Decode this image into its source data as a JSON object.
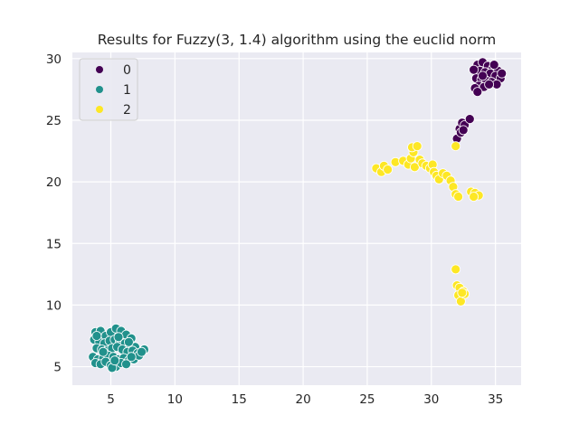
{
  "chart_data": {
    "type": "scatter",
    "title": "Results for Fuzzy(3, 1.4) algorithm using the euclid norm",
    "xlabel": "",
    "ylabel": "",
    "xlim": [
      2,
      37
    ],
    "ylim": [
      3.5,
      30.5
    ],
    "xticks": [
      5,
      10,
      15,
      20,
      25,
      30,
      35
    ],
    "yticks": [
      5,
      10,
      15,
      20,
      25,
      30
    ],
    "xtick_labels": [
      "5",
      "10",
      "15",
      "20",
      "25",
      "30",
      "35"
    ],
    "ytick_labels": [
      "5",
      "10",
      "15",
      "20",
      "25",
      "30"
    ],
    "grid": true,
    "legend": "top-left",
    "series": [
      {
        "name": "0",
        "color": "#440154",
        "points": [
          [
            33.6,
            29.5
          ],
          [
            34.0,
            29.7
          ],
          [
            34.4,
            29.4
          ],
          [
            34.8,
            29.2
          ],
          [
            35.2,
            29.0
          ],
          [
            33.8,
            29.0
          ],
          [
            34.2,
            28.9
          ],
          [
            34.6,
            28.8
          ],
          [
            35.0,
            28.6
          ],
          [
            35.4,
            28.4
          ],
          [
            33.5,
            28.4
          ],
          [
            33.9,
            28.3
          ],
          [
            34.3,
            28.2
          ],
          [
            34.7,
            28.1
          ],
          [
            35.1,
            27.9
          ],
          [
            33.7,
            27.8
          ],
          [
            34.1,
            27.7
          ],
          [
            34.5,
            27.9
          ],
          [
            33.4,
            27.6
          ],
          [
            33.6,
            27.3
          ],
          [
            35.5,
            28.8
          ],
          [
            33.3,
            29.1
          ],
          [
            34.0,
            28.6
          ],
          [
            34.9,
            29.5
          ],
          [
            32.0,
            23.5
          ],
          [
            32.2,
            24.3
          ],
          [
            32.4,
            24.8
          ],
          [
            32.6,
            24.6
          ],
          [
            33.0,
            25.1
          ],
          [
            32.3,
            24.0
          ],
          [
            32.5,
            24.2
          ]
        ]
      },
      {
        "name": "1",
        "color": "#21918c",
        "points": [
          [
            3.8,
            7.8
          ],
          [
            4.2,
            7.9
          ],
          [
            4.6,
            7.5
          ],
          [
            5.0,
            7.8
          ],
          [
            5.4,
            8.1
          ],
          [
            5.8,
            7.9
          ],
          [
            6.2,
            7.6
          ],
          [
            6.6,
            7.3
          ],
          [
            3.7,
            7.2
          ],
          [
            4.1,
            7.0
          ],
          [
            4.5,
            6.9
          ],
          [
            4.9,
            7.1
          ],
          [
            5.3,
            7.2
          ],
          [
            5.7,
            7.0
          ],
          [
            6.1,
            6.9
          ],
          [
            6.5,
            6.7
          ],
          [
            6.9,
            6.6
          ],
          [
            3.9,
            6.5
          ],
          [
            4.3,
            6.4
          ],
          [
            4.7,
            6.3
          ],
          [
            5.1,
            6.5
          ],
          [
            5.5,
            6.6
          ],
          [
            5.9,
            6.4
          ],
          [
            6.3,
            6.2
          ],
          [
            6.7,
            6.3
          ],
          [
            7.1,
            6.1
          ],
          [
            7.6,
            6.4
          ],
          [
            3.6,
            5.8
          ],
          [
            4.0,
            5.6
          ],
          [
            4.4,
            5.7
          ],
          [
            4.8,
            5.9
          ],
          [
            5.2,
            5.8
          ],
          [
            5.6,
            5.6
          ],
          [
            6.0,
            5.7
          ],
          [
            6.4,
            5.5
          ],
          [
            6.8,
            5.6
          ],
          [
            7.2,
            5.9
          ],
          [
            3.8,
            5.3
          ],
          [
            4.2,
            5.2
          ],
          [
            4.6,
            5.4
          ],
          [
            5.0,
            5.1
          ],
          [
            5.4,
            5.0
          ],
          [
            5.8,
            5.3
          ],
          [
            6.2,
            5.2
          ],
          [
            6.6,
            5.8
          ],
          [
            5.1,
            4.9
          ],
          [
            5.6,
            7.4
          ],
          [
            4.4,
            6.2
          ],
          [
            7.4,
            6.2
          ],
          [
            3.9,
            7.5
          ],
          [
            6.4,
            7.0
          ],
          [
            5.3,
            5.5
          ]
        ]
      },
      {
        "name": "2",
        "color": "#fde725",
        "points": [
          [
            25.7,
            21.1
          ],
          [
            26.1,
            20.8
          ],
          [
            26.3,
            21.3
          ],
          [
            26.6,
            21.0
          ],
          [
            27.2,
            21.6
          ],
          [
            27.8,
            21.7
          ],
          [
            28.2,
            21.4
          ],
          [
            28.4,
            21.9
          ],
          [
            28.6,
            22.4
          ],
          [
            28.7,
            21.2
          ],
          [
            28.5,
            22.8
          ],
          [
            28.9,
            22.9
          ],
          [
            29.1,
            21.8
          ],
          [
            29.3,
            21.5
          ],
          [
            29.6,
            21.3
          ],
          [
            29.9,
            21.1
          ],
          [
            30.1,
            21.4
          ],
          [
            30.2,
            20.8
          ],
          [
            30.4,
            20.5
          ],
          [
            30.6,
            20.2
          ],
          [
            30.9,
            20.7
          ],
          [
            31.2,
            20.5
          ],
          [
            31.5,
            20.1
          ],
          [
            31.7,
            19.6
          ],
          [
            31.9,
            19.0
          ],
          [
            32.1,
            18.8
          ],
          [
            33.1,
            19.2
          ],
          [
            33.4,
            19.1
          ],
          [
            33.7,
            18.9
          ],
          [
            33.3,
            18.8
          ],
          [
            31.9,
            22.9
          ],
          [
            31.9,
            12.9
          ],
          [
            32.0,
            11.6
          ],
          [
            32.2,
            11.4
          ],
          [
            32.5,
            11.1
          ],
          [
            32.1,
            10.8
          ],
          [
            32.3,
            10.3
          ],
          [
            32.6,
            10.9
          ],
          [
            32.4,
            11.0
          ]
        ]
      }
    ]
  }
}
